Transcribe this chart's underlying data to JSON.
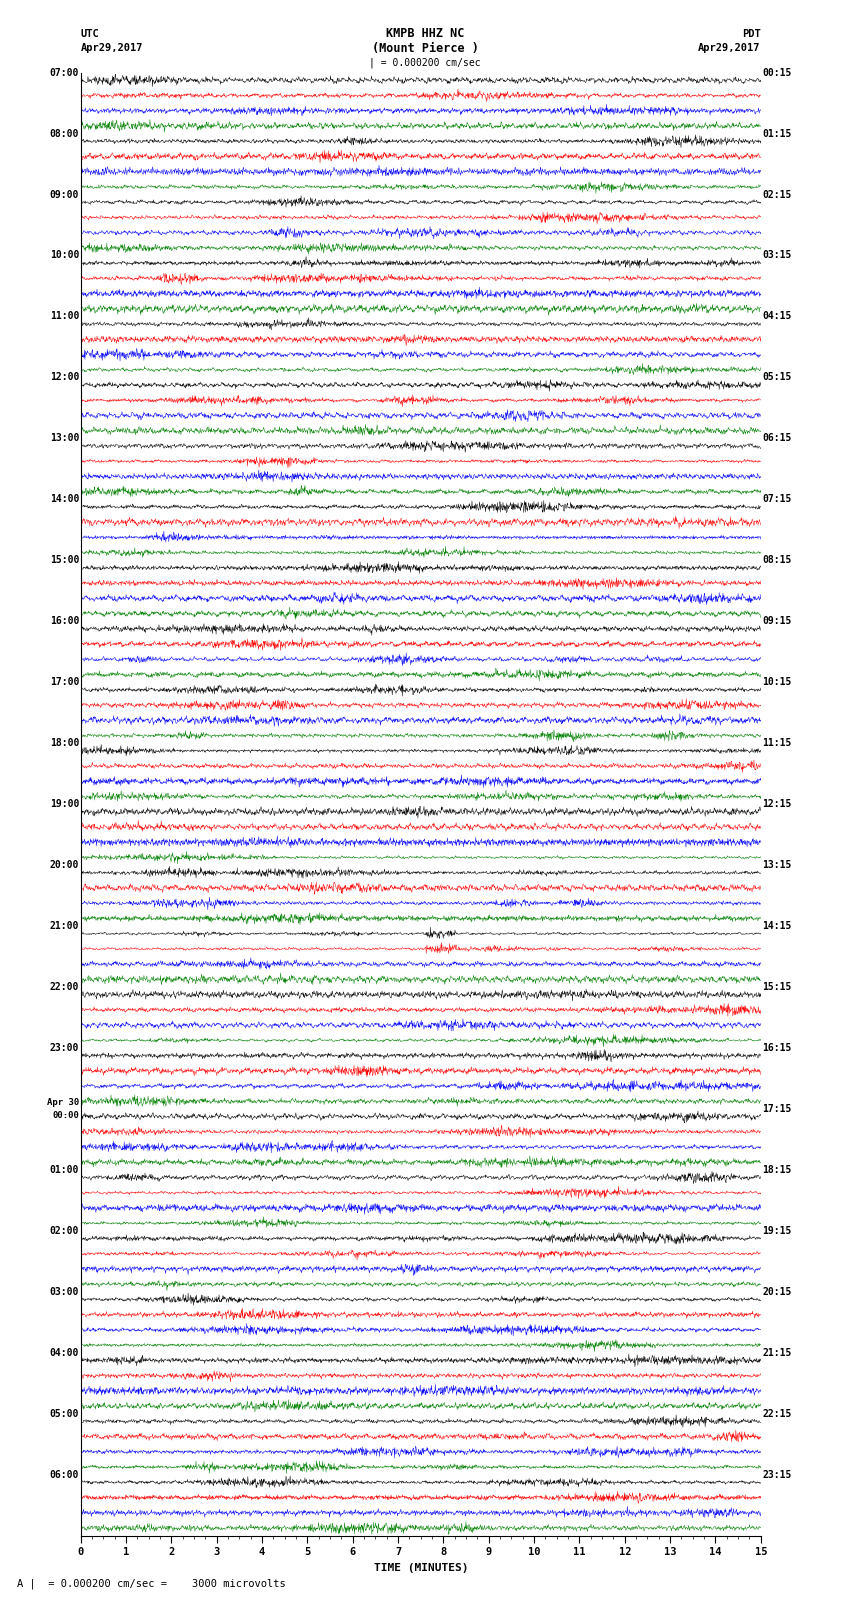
{
  "title_line1": "KMPB HHZ NC",
  "title_line2": "(Mount Pierce )",
  "scale_label": "| = 0.000200 cm/sec",
  "label_utc": "UTC",
  "label_pdt": "PDT",
  "date_left": "Apr29,2017",
  "date_right": "Apr29,2017",
  "bottom_label": "A |  = 0.000200 cm/sec =    3000 microvolts",
  "xlabel": "TIME (MINUTES)",
  "xlim": [
    0,
    15
  ],
  "xticks": [
    0,
    1,
    2,
    3,
    4,
    5,
    6,
    7,
    8,
    9,
    10,
    11,
    12,
    13,
    14,
    15
  ],
  "colors": [
    "black",
    "red",
    "blue",
    "green"
  ],
  "n_groups": 24,
  "traces_per_group": 4,
  "fig_width": 8.5,
  "fig_height": 16.13,
  "bg_color": "#ffffff",
  "left_times": [
    "07:00",
    "08:00",
    "09:00",
    "10:00",
    "11:00",
    "12:00",
    "13:00",
    "14:00",
    "15:00",
    "16:00",
    "17:00",
    "18:00",
    "19:00",
    "20:00",
    "21:00",
    "22:00",
    "23:00",
    "Apr 30\n00:00",
    "01:00",
    "02:00",
    "03:00",
    "04:00",
    "05:00",
    "06:00"
  ],
  "right_times": [
    "00:15",
    "01:15",
    "02:15",
    "03:15",
    "04:15",
    "05:15",
    "06:15",
    "07:15",
    "08:15",
    "09:15",
    "10:15",
    "11:15",
    "12:15",
    "13:15",
    "14:15",
    "15:15",
    "16:15",
    "17:15",
    "18:15",
    "19:15",
    "20:15",
    "21:15",
    "22:15",
    "23:15"
  ]
}
